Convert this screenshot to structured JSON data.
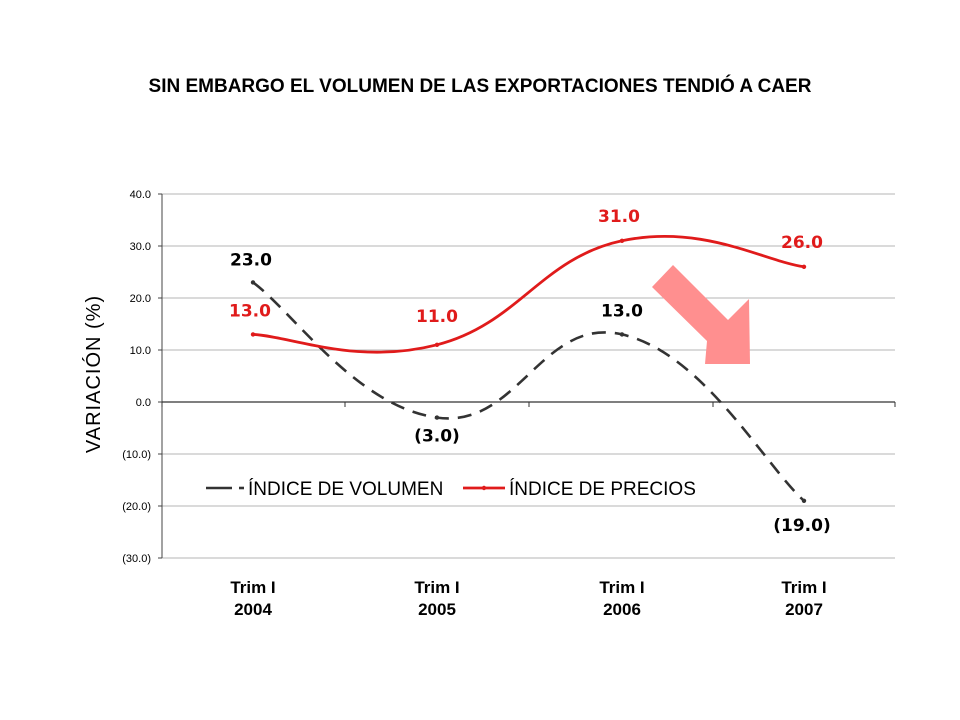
{
  "chart_data": {
    "type": "line",
    "title": "SIN EMBARGO EL VOLUMEN DE LAS EXPORTACIONES TENDIÓ A CAER",
    "ylabel": "VARIACIÓN (%)",
    "xlabel": "",
    "categories": [
      [
        "Trim I",
        "2004"
      ],
      [
        "Trim I",
        "2005"
      ],
      [
        "Trim I",
        "2006"
      ],
      [
        "Trim I",
        "2007"
      ]
    ],
    "ylim": [
      -30,
      40
    ],
    "yticks": [
      40,
      30,
      20,
      10,
      0,
      -10,
      -20,
      -30
    ],
    "ytick_labels": [
      "40.0",
      "30.0",
      "20.0",
      "10.0",
      "0.0",
      "(10.0)",
      "(20.0)",
      "(30.0)"
    ],
    "grid": true,
    "legend_position": "bottom-center",
    "series": [
      {
        "name": "ÍNDICE DE VOLUMEN",
        "values": [
          23.0,
          -3.0,
          13.0,
          -19.0
        ],
        "labels": [
          "23.0",
          "(3.0)",
          "13.0",
          "(19.0)"
        ],
        "color": "#333333",
        "style": "dashed"
      },
      {
        "name": "ÍNDICE DE PRECIOS",
        "values": [
          13.0,
          11.0,
          31.0,
          26.0
        ],
        "labels": [
          "13.0",
          "11.0",
          "31.0",
          "26.0"
        ],
        "color": "#e01b1b",
        "style": "solid"
      }
    ],
    "annotation": {
      "type": "arrow",
      "direction": "down-right",
      "color": "#ff8f8f"
    }
  }
}
